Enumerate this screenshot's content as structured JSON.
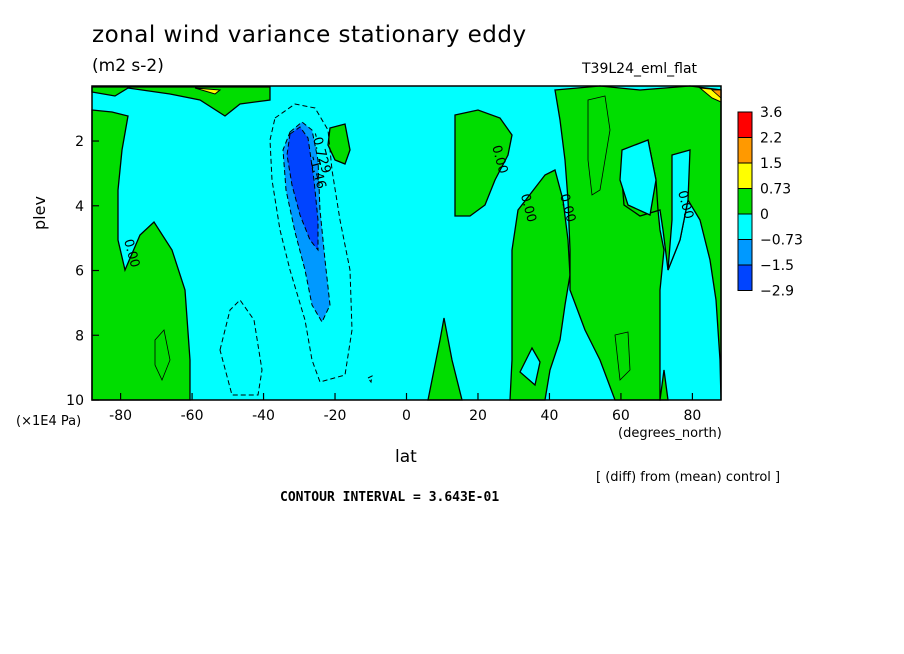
{
  "chart_data": {
    "type": "heatmap",
    "title": "zonal wind variance stationary eddy",
    "units": "(m2 s-2)",
    "run_label": "T39L24_eml_flat",
    "xlabel": "lat",
    "xunits": "(degrees_north)",
    "ylabel": "plev",
    "yunits": "(×1E4 Pa)",
    "xlim": [
      -88,
      88
    ],
    "ylim": [
      0.3,
      10
    ],
    "y_inverted": true,
    "x_ticks": [
      -80,
      -60,
      -40,
      -20,
      0,
      20,
      40,
      60,
      80
    ],
    "y_ticks": [
      2,
      4,
      6,
      8,
      10
    ],
    "colorbar": {
      "levels": [
        "3.6",
        "2.2",
        "1.5",
        "0.73",
        "0",
        "−0.73",
        "−1.5",
        "−2.9"
      ],
      "colors": [
        "#ff0000",
        "#ff9900",
        "#ffff00",
        "#00dd00",
        "#00ffff",
        "#0099ff",
        "#0044ff"
      ]
    },
    "contour_labels": [
      {
        "text": "0.00",
        "lat": -78,
        "plev": 5.5
      },
      {
        "text": "0.00",
        "lat": 25,
        "plev": 2.6
      },
      {
        "text": "0.00",
        "lat": 33,
        "plev": 4.1
      },
      {
        "text": "0.00",
        "lat": 44,
        "plev": 4.1
      },
      {
        "text": "0.00",
        "lat": 77,
        "plev": 4.0
      },
      {
        "text": "-0.729",
        "lat": -25,
        "plev": 2.4
      },
      {
        "text": "-1.46",
        "lat": -26,
        "plev": 3.0
      }
    ],
    "contour_interval": "CONTOUR INTERVAL = 3.643E-01",
    "note": "[ (diff) from (mean) control ]",
    "grid": false,
    "legend_position": "right"
  }
}
